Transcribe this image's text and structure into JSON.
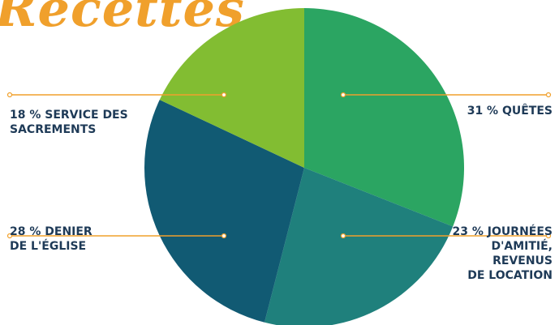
{
  "title": "Recettes",
  "chart_data": {
    "type": "pie",
    "title": "Recettes",
    "start_angle_deg": 0,
    "direction": "clockwise",
    "slices": [
      {
        "label": "31 % QUÊTES",
        "value": 31,
        "color": "#2ba562"
      },
      {
        "label": "23 % JOURNÉES\nD'AMITIÉ,\nREVENUS\nDE LOCATION",
        "value": 23,
        "color": "#1f807c"
      },
      {
        "label": "28 % DENIER\nDE L'ÉGLISE",
        "value": 28,
        "color": "#115a73"
      },
      {
        "label": "18 % SERVICE DES\nSACREMENTS",
        "value": 18,
        "color": "#82bd32"
      }
    ],
    "leader_color": "#f0a02c"
  }
}
